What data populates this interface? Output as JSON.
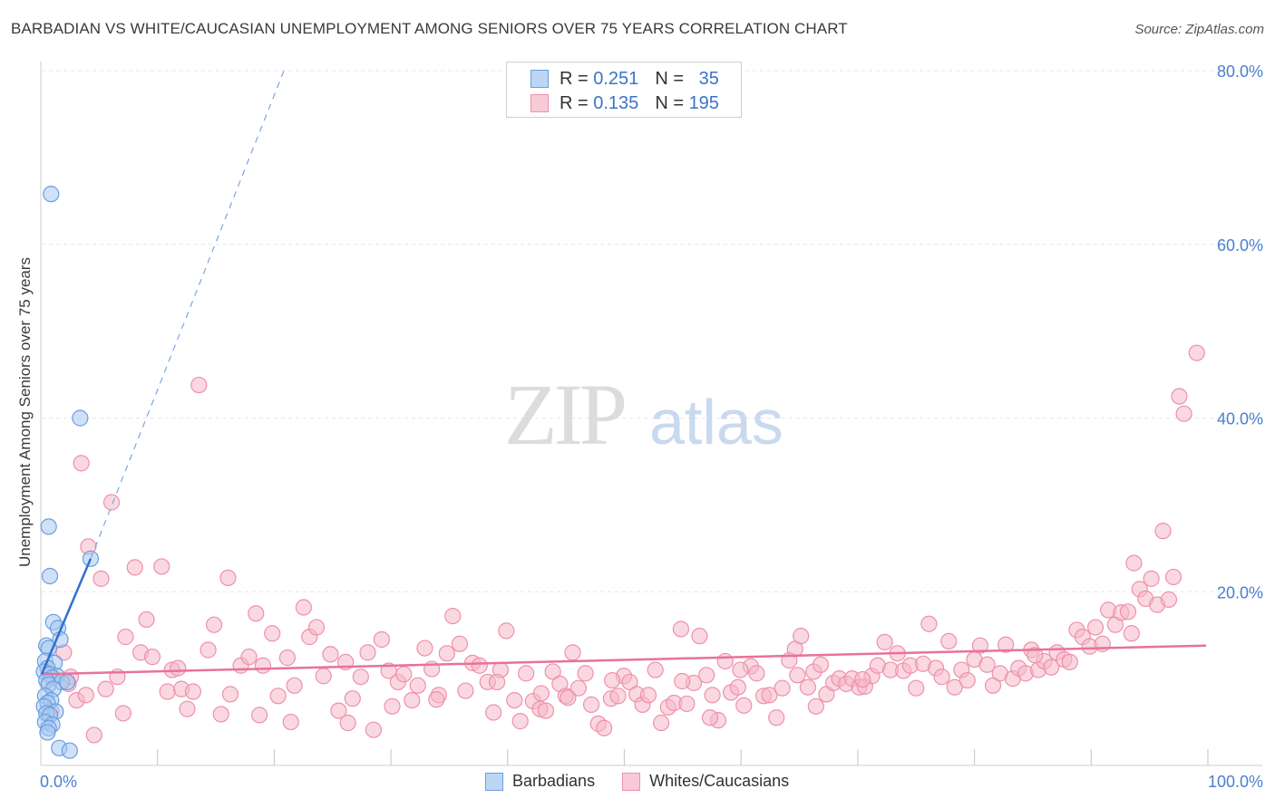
{
  "title": "BARBADIAN VS WHITE/CAUCASIAN UNEMPLOYMENT AMONG SENIORS OVER 75 YEARS CORRELATION CHART",
  "source": "Source: ZipAtlas.com",
  "watermark": {
    "zip": "ZIP",
    "atlas": "atlas"
  },
  "legend": {
    "barbadians": {
      "r_label": "R =",
      "r_value": "0.251",
      "n_label": "N =",
      "n_value": "35"
    },
    "whites": {
      "r_label": "R =",
      "r_value": "0.135",
      "n_label": "N =",
      "n_value": "195"
    }
  },
  "bottom_legend": {
    "barbadians": "Barbadians",
    "whites": "Whites/Caucasians"
  },
  "colors": {
    "blue_fill": "#a8c8f0",
    "blue_stroke": "#6a9de0",
    "blue_line": "#2f6fd0",
    "pink_fill": "#f6b8c9",
    "pink_stroke": "#ee90ac",
    "pink_line": "#e8729a",
    "tick_text": "#4a7fd0",
    "grid": "#e6e6e6"
  },
  "chart_data": {
    "type": "scatter",
    "title": "BARBADIAN VS WHITE/CAUCASIAN UNEMPLOYMENT AMONG SENIORS OVER 75 YEARS CORRELATION CHART",
    "xlabel": "",
    "ylabel": "Unemployment Among Seniors over 75 years",
    "xlim": [
      0,
      100
    ],
    "ylim": [
      0,
      80
    ],
    "x_tick_labels": [
      {
        "value": 0,
        "label": "0.0%"
      },
      {
        "value": 100,
        "label": "100.0%"
      }
    ],
    "y_tick_labels": [
      {
        "value": 20,
        "label": "20.0%"
      },
      {
        "value": 40,
        "label": "40.0%"
      },
      {
        "value": 60,
        "label": "60.0%"
      },
      {
        "value": 80,
        "label": "80.0%"
      }
    ],
    "series": [
      {
        "name": "Barbadians",
        "points": [
          [
            0.8,
            65.8
          ],
          [
            3.3,
            40.0
          ],
          [
            0.6,
            27.5
          ],
          [
            4.2,
            23.8
          ],
          [
            0.7,
            21.8
          ],
          [
            1.0,
            16.5
          ],
          [
            1.4,
            15.8
          ],
          [
            1.6,
            14.5
          ],
          [
            0.4,
            13.8
          ],
          [
            0.6,
            13.5
          ],
          [
            0.3,
            12.0
          ],
          [
            1.1,
            11.8
          ],
          [
            0.5,
            11.2
          ],
          [
            0.2,
            10.8
          ],
          [
            0.7,
            10.5
          ],
          [
            1.3,
            10.3
          ],
          [
            0.9,
            10.1
          ],
          [
            0.4,
            9.8
          ],
          [
            1.7,
            9.6
          ],
          [
            2.2,
            9.6
          ],
          [
            0.6,
            9.3
          ],
          [
            1.0,
            8.8
          ],
          [
            0.3,
            8.0
          ],
          [
            0.8,
            7.5
          ],
          [
            0.5,
            7.2
          ],
          [
            0.2,
            6.8
          ],
          [
            1.2,
            6.2
          ],
          [
            0.4,
            6.0
          ],
          [
            0.7,
            5.8
          ],
          [
            0.3,
            5.0
          ],
          [
            0.9,
            4.7
          ],
          [
            0.6,
            4.3
          ],
          [
            1.5,
            2.0
          ],
          [
            2.4,
            1.7
          ],
          [
            0.5,
            3.8
          ]
        ],
        "trend": {
          "x": [
            0,
            4.2
          ],
          "y": [
            10.5,
            23.8
          ]
        },
        "trend_extension": {
          "x": [
            4.2,
            20.8
          ],
          "y": [
            23.8,
            80.0
          ]
        }
      },
      {
        "name": "Whites/Caucasians",
        "points": [
          [
            13.5,
            43.8
          ],
          [
            3.4,
            34.8
          ],
          [
            6.0,
            30.3
          ],
          [
            4.0,
            25.2
          ],
          [
            5.1,
            21.5
          ],
          [
            8.0,
            22.8
          ],
          [
            10.3,
            22.9
          ],
          [
            16.0,
            21.6
          ],
          [
            1.9,
            13.0
          ],
          [
            2.3,
            9.4
          ],
          [
            0.8,
            6.3
          ],
          [
            3.0,
            7.5
          ],
          [
            4.5,
            3.5
          ],
          [
            5.5,
            8.8
          ],
          [
            6.5,
            10.2
          ],
          [
            7.2,
            14.8
          ],
          [
            8.5,
            13.0
          ],
          [
            9.0,
            16.8
          ],
          [
            9.5,
            12.5
          ],
          [
            10.8,
            8.5
          ],
          [
            11.2,
            11.0
          ],
          [
            12.0,
            8.8
          ],
          [
            12.5,
            6.5
          ],
          [
            13.0,
            8.5
          ],
          [
            14.3,
            13.3
          ],
          [
            14.8,
            16.2
          ],
          [
            15.4,
            5.9
          ],
          [
            16.2,
            8.2
          ],
          [
            17.1,
            11.5
          ],
          [
            17.8,
            12.5
          ],
          [
            18.4,
            17.5
          ],
          [
            19.0,
            11.5
          ],
          [
            19.8,
            15.2
          ],
          [
            20.3,
            8.0
          ],
          [
            21.1,
            12.4
          ],
          [
            21.7,
            9.2
          ],
          [
            22.5,
            18.2
          ],
          [
            23.0,
            14.8
          ],
          [
            23.6,
            15.9
          ],
          [
            24.2,
            10.3
          ],
          [
            24.8,
            12.8
          ],
          [
            25.5,
            6.3
          ],
          [
            26.1,
            11.9
          ],
          [
            26.7,
            7.7
          ],
          [
            27.4,
            10.2
          ],
          [
            28.0,
            13.0
          ],
          [
            28.5,
            4.1
          ],
          [
            29.2,
            14.5
          ],
          [
            29.8,
            10.9
          ],
          [
            30.6,
            9.6
          ],
          [
            31.1,
            10.5
          ],
          [
            31.8,
            7.5
          ],
          [
            32.3,
            9.2
          ],
          [
            32.9,
            13.5
          ],
          [
            33.5,
            11.1
          ],
          [
            34.1,
            8.1
          ],
          [
            34.8,
            12.9
          ],
          [
            35.3,
            17.2
          ],
          [
            35.9,
            14.0
          ],
          [
            36.4,
            8.6
          ],
          [
            37.0,
            11.8
          ],
          [
            37.6,
            11.5
          ],
          [
            38.3,
            9.6
          ],
          [
            38.8,
            6.1
          ],
          [
            39.4,
            11.0
          ],
          [
            39.9,
            15.5
          ],
          [
            40.6,
            7.5
          ],
          [
            41.1,
            5.1
          ],
          [
            41.6,
            10.6
          ],
          [
            42.2,
            7.4
          ],
          [
            42.8,
            6.5
          ],
          [
            43.3,
            6.3
          ],
          [
            43.9,
            10.8
          ],
          [
            44.5,
            9.4
          ],
          [
            45.0,
            8.0
          ],
          [
            45.6,
            13.0
          ],
          [
            46.1,
            8.9
          ],
          [
            46.7,
            10.6
          ],
          [
            47.2,
            7.0
          ],
          [
            47.8,
            4.8
          ],
          [
            48.3,
            4.3
          ],
          [
            48.9,
            7.7
          ],
          [
            49.5,
            8.0
          ],
          [
            50.0,
            10.3
          ],
          [
            50.5,
            9.6
          ],
          [
            51.1,
            8.2
          ],
          [
            51.6,
            7.0
          ],
          [
            52.1,
            8.1
          ],
          [
            52.7,
            11.0
          ],
          [
            53.2,
            4.9
          ],
          [
            53.8,
            6.7
          ],
          [
            54.3,
            7.2
          ],
          [
            54.9,
            15.7
          ],
          [
            55.4,
            7.1
          ],
          [
            56.0,
            9.5
          ],
          [
            56.5,
            14.9
          ],
          [
            57.1,
            10.4
          ],
          [
            57.6,
            8.1
          ],
          [
            58.1,
            5.2
          ],
          [
            58.7,
            12.0
          ],
          [
            59.2,
            8.4
          ],
          [
            59.8,
            9.0
          ],
          [
            60.3,
            6.9
          ],
          [
            60.9,
            11.4
          ],
          [
            61.4,
            10.6
          ],
          [
            62.0,
            8.0
          ],
          [
            62.5,
            8.1
          ],
          [
            63.1,
            5.5
          ],
          [
            63.6,
            8.9
          ],
          [
            64.2,
            12.1
          ],
          [
            64.7,
            13.4
          ],
          [
            65.2,
            14.9
          ],
          [
            65.8,
            9.0
          ],
          [
            66.3,
            10.8
          ],
          [
            66.9,
            11.6
          ],
          [
            67.4,
            8.2
          ],
          [
            68.0,
            9.5
          ],
          [
            68.5,
            10.0
          ],
          [
            69.1,
            9.4
          ],
          [
            69.6,
            10.0
          ],
          [
            70.2,
            9.0
          ],
          [
            70.7,
            9.1
          ],
          [
            71.3,
            10.3
          ],
          [
            71.8,
            11.5
          ],
          [
            72.4,
            14.2
          ],
          [
            72.9,
            11.0
          ],
          [
            73.5,
            12.9
          ],
          [
            74.0,
            10.9
          ],
          [
            74.6,
            11.5
          ],
          [
            75.1,
            8.9
          ],
          [
            75.7,
            11.7
          ],
          [
            76.2,
            16.3
          ],
          [
            76.8,
            11.2
          ],
          [
            77.3,
            10.2
          ],
          [
            77.9,
            14.3
          ],
          [
            78.4,
            9.0
          ],
          [
            79.0,
            11.0
          ],
          [
            79.5,
            9.8
          ],
          [
            80.1,
            12.2
          ],
          [
            80.6,
            13.8
          ],
          [
            81.2,
            11.6
          ],
          [
            81.7,
            9.2
          ],
          [
            82.3,
            10.6
          ],
          [
            82.8,
            13.9
          ],
          [
            83.4,
            10.0
          ],
          [
            83.9,
            11.2
          ],
          [
            84.5,
            10.6
          ],
          [
            85.0,
            13.3
          ],
          [
            85.6,
            11.0
          ],
          [
            86.1,
            12.0
          ],
          [
            86.7,
            11.3
          ],
          [
            87.2,
            13.0
          ],
          [
            87.8,
            12.2
          ],
          [
            88.3,
            11.9
          ],
          [
            88.9,
            15.6
          ],
          [
            89.4,
            14.8
          ],
          [
            90.0,
            13.7
          ],
          [
            90.5,
            15.9
          ],
          [
            91.1,
            14.0
          ],
          [
            91.6,
            17.9
          ],
          [
            92.2,
            16.2
          ],
          [
            92.7,
            17.6
          ],
          [
            93.3,
            17.7
          ],
          [
            93.8,
            23.3
          ],
          [
            94.3,
            20.3
          ],
          [
            94.8,
            19.2
          ],
          [
            95.3,
            21.5
          ],
          [
            95.8,
            18.5
          ],
          [
            96.3,
            27.0
          ],
          [
            96.8,
            19.1
          ],
          [
            97.2,
            21.7
          ],
          [
            97.7,
            42.5
          ],
          [
            98.1,
            40.5
          ],
          [
            99.2,
            47.5
          ],
          [
            2.5,
            10.2
          ],
          [
            7.0,
            6.0
          ],
          [
            18.7,
            5.8
          ],
          [
            26.3,
            4.9
          ],
          [
            33.9,
            7.6
          ],
          [
            45.2,
            7.8
          ],
          [
            57.4,
            5.5
          ],
          [
            66.5,
            6.8
          ],
          [
            39.1,
            9.6
          ],
          [
            11.7,
            11.2
          ],
          [
            49.0,
            9.8
          ],
          [
            60.0,
            11.0
          ],
          [
            70.5,
            9.9
          ],
          [
            85.3,
            12.7
          ],
          [
            93.6,
            15.2
          ],
          [
            3.8,
            8.1
          ],
          [
            21.4,
            5.0
          ],
          [
            30.1,
            6.8
          ],
          [
            42.9,
            8.3
          ],
          [
            55.0,
            9.7
          ],
          [
            64.9,
            10.4
          ]
        ],
        "trend": {
          "x": [
            0,
            100
          ],
          "y": [
            10.5,
            13.8
          ]
        }
      }
    ]
  }
}
